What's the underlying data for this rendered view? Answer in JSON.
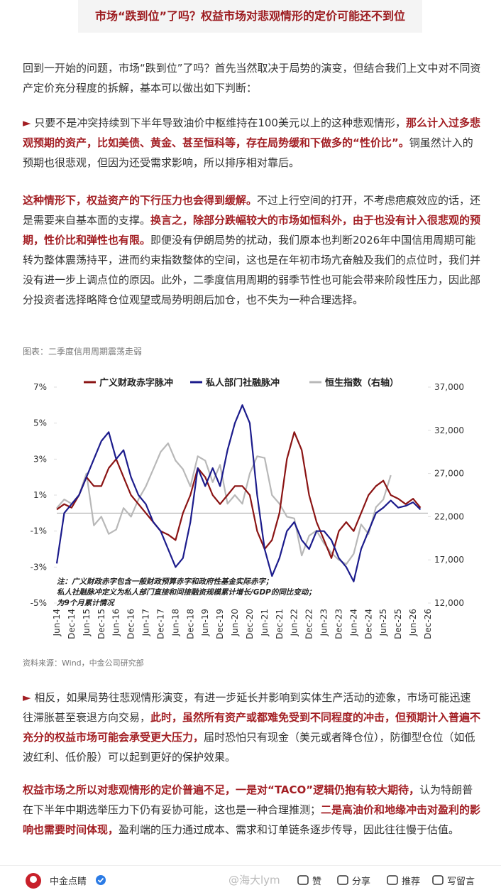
{
  "header": {
    "title": "市场“跌到位”了吗？权益市场对悲观情形的定价可能还不到位"
  },
  "paragraphs_before": [
    [
      {
        "text": "回到一开始的问题，市场“跌到位”了吗？首先当然取决于局势的演变，但结合我们上文中对不同资产定价充分程度的拆解，基本可以做出如下判断：",
        "style": "plain"
      }
    ],
    [
      {
        "text": "►",
        "style": "marker"
      },
      {
        "text": " 只要不是冲突持续到下半年导致油价中枢维持在100美元以上的这种悲观情形，",
        "style": "plain"
      },
      {
        "text": "那么计入过多悲观预期的资产，比如美债、黄金、甚至恒科等，存在局势缓和下做多的“性价比”。",
        "style": "emphasis"
      },
      {
        "text": "铜虽然计入的预期也很悲观，但因为还受需求影响，所以排序相对靠后。",
        "style": "plain"
      }
    ],
    [
      {
        "text": "这种情形下，权益资产的下行压力也会得到缓解。",
        "style": "emphasis"
      },
      {
        "text": "不过上行空间的打开，不考虑疤痕效应的话，还是需要来自基本面的支撑。",
        "style": "plain"
      },
      {
        "text": "换言之，除部分跌幅较大的市场如恒科外，由于也没有计入很悲观的预期，性价比和弹性也有限。",
        "style": "emphasis"
      },
      {
        "text": "即便没有伊朗局势的扰动，我们原本也判断2026年中国信用周期可能转为整体震荡持平，进而约束指数整体的空间，这也是在年初市场亢奋触及我们的点位时，我们并没有进一步上调点位的原因。此外，二季度信用周期的弱季节性也可能会带来阶段性压力，因此部分投资者选择略降仓位观望或局势明朗后加仓，也不失为一种合理选择。",
        "style": "plain"
      }
    ]
  ],
  "paragraphs_after": [
    [
      {
        "text": "►",
        "style": "marker"
      },
      {
        "text": " 相反，如果局势往悲观情形演变，有进一步延长并影响到实体生产活动的迹象，市场可能迅速往滞胀甚至衰退方向交易，",
        "style": "plain"
      },
      {
        "text": "此时，虽然所有资产或都难免受到不同程度的冲击，但预期计入普遍不充分的权益市场可能会承受更大压力，",
        "style": "emphasis"
      },
      {
        "text": "届时恐怕只有现金（美元或者降仓位），防御型仓位（如低波红利、低价股）可以起到更好的保护效果。",
        "style": "plain"
      }
    ],
    [
      {
        "text": "权益市场之所以对悲观情形的定价普遍不足，一是对“TACO”逻辑仍抱有较大期待，",
        "style": "emphasis"
      },
      {
        "text": "认为特朗普在下半年中期选举压力下仍有妥协可能，这也是一种合理推测；",
        "style": "plain"
      },
      {
        "text": "二是高油价和地缘冲击对盈利的影响也需要时间体现，",
        "style": "emphasis"
      },
      {
        "text": "盈利端的压力通过成本、需求和订单链条逐步传导，因此往往慢于估值。",
        "style": "plain"
      }
    ]
  ],
  "chart_data": {
    "type": "line",
    "title": "图表：二季度信用周期震荡走弱",
    "source": "资料来源：Wind，中金公司研究部",
    "notes": [
      "注：广义财政赤字包含一般财政预算赤字和政府性基金实际赤字；",
      "私人社融脉冲定义为私人部门直接和间接融资规模累计增长/GDP的同比变动；",
      "为9个月累计情况"
    ],
    "categories": [
      "Jun-14",
      null,
      "Dec-14",
      null,
      "Jun-15",
      null,
      "Dec-15",
      null,
      "Jun-16",
      null,
      "Dec-16",
      null,
      "Jun-17",
      null,
      "Dec-17",
      null,
      "Jun-18",
      null,
      "Dec-18",
      null,
      "Jun-19",
      null,
      "Dec-19",
      null,
      "Jun-20",
      null,
      "Dec-20",
      null,
      "Jun-21",
      null,
      "Dec-21",
      null,
      "Jun-22",
      null,
      "Dec-22",
      null,
      "Jun-23",
      null,
      "Dec-23",
      null,
      "Jun-24",
      null,
      "Dec-24",
      null,
      "Jun-25",
      null,
      "Dec-25",
      null,
      "Jun-26",
      null,
      "Dec-26"
    ],
    "ylim": [
      -5,
      7
    ],
    "yticks": [
      {
        "value": -5,
        "label": "-5%"
      },
      {
        "value": -3,
        "label": "-3%"
      },
      {
        "value": -1,
        "label": "-1%"
      },
      {
        "value": 1,
        "label": "1%"
      },
      {
        "value": 3,
        "label": "3%"
      },
      {
        "value": 5,
        "label": "5%"
      },
      {
        "value": 7,
        "label": "7%"
      }
    ],
    "y2lim": [
      12000,
      37000
    ],
    "y2ticks": [
      {
        "value": 12000,
        "label": "12,000"
      },
      {
        "value": 17000,
        "label": "17,000"
      },
      {
        "value": 22000,
        "label": "22,000"
      },
      {
        "value": 27000,
        "label": "27,000"
      },
      {
        "value": 32000,
        "label": "32,000"
      },
      {
        "value": 37000,
        "label": "37,000"
      }
    ],
    "legend": "top",
    "series": [
      {
        "name": "广义财政赤字脉冲",
        "color": "#8b1414",
        "values": [
          0.2,
          0.5,
          0.3,
          1.0,
          2.0,
          1.5,
          1.5,
          2.5,
          3.0,
          2.0,
          1.0,
          0.5,
          0.0,
          -0.5,
          -1.0,
          -1.2,
          -1.5,
          0.0,
          1.0,
          2.5,
          2.0,
          1.0,
          0.5,
          1.0,
          1.5,
          1.5,
          1.0,
          -1.0,
          -2.0,
          -1.5,
          0.0,
          3.0,
          4.5,
          3.5,
          1.0,
          -0.5,
          -1.5,
          -2.5,
          -1.0,
          -0.5,
          -1.0,
          0.0,
          1.0,
          1.5,
          1.8,
          1.0,
          0.8,
          0.5,
          0.8,
          0.3,
          null
        ]
      },
      {
        "name": "私人部门社融脉冲",
        "color": "#1c1c8c",
        "values": [
          -2.8,
          0.0,
          0.5,
          1.0,
          2.0,
          3.0,
          4.0,
          4.5,
          3.0,
          3.5,
          2.0,
          1.0,
          0.5,
          -0.5,
          -1.0,
          -2.0,
          -3.0,
          -2.5,
          -0.5,
          2.5,
          1.5,
          2.5,
          1.5,
          3.5,
          5.0,
          6.0,
          5.0,
          1.0,
          -2.0,
          -3.5,
          -2.5,
          -1.0,
          -0.5,
          -1.5,
          -2.0,
          -1.0,
          -1.0,
          -1.5,
          -2.5,
          -3.0,
          -3.8,
          -2.0,
          -1.0,
          0.0,
          0.3,
          0.7,
          0.3,
          0.4,
          0.6,
          0.2,
          null
        ]
      },
      {
        "name": "恒生指数（右轴）",
        "color": "#b8b8b8",
        "axis": "y2",
        "values": [
          23000,
          24000,
          23500,
          24500,
          27000,
          21000,
          22000,
          20000,
          20500,
          23000,
          22000,
          24000,
          25500,
          27500,
          29500,
          30500,
          28500,
          27500,
          25500,
          29000,
          28500,
          26000,
          28000,
          23500,
          24500,
          23500,
          27000,
          29000,
          28800,
          24500,
          23500,
          22000,
          21800,
          17500,
          19800,
          20400,
          18900,
          17800,
          17000,
          16500,
          17700,
          21100,
          20000,
          23100,
          24000,
          26800,
          null,
          null,
          null,
          null,
          null
        ]
      }
    ]
  },
  "footer": {
    "account": "中金点睛",
    "watermark": "@海大lym",
    "actions": [
      "赞",
      "分享",
      "推荐",
      "写留言"
    ]
  }
}
